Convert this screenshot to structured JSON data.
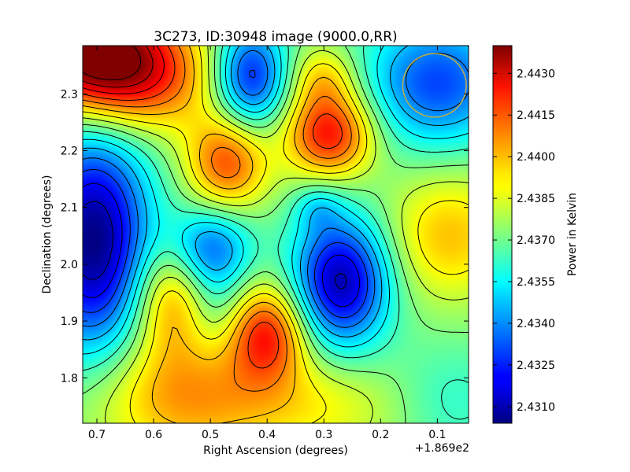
{
  "chart_data": {
    "type": "heatmap",
    "title": "3C273, ID:30948 image (9000.0,RR)",
    "xlabel": "Right Ascension (degrees)",
    "ylabel": "Declination (degrees)",
    "x_offset_label": "+1.869e2",
    "colorbar_label": "Power in Kelvin",
    "colormap": "jet",
    "xlim": [
      0.725,
      0.045
    ],
    "ylim": [
      1.72,
      2.385
    ],
    "color_range": [
      2.4304,
      2.444
    ],
    "x_ticks": [
      {
        "value": 0.7,
        "label": "0.7"
      },
      {
        "value": 0.6,
        "label": "0.6"
      },
      {
        "value": 0.5,
        "label": "0.5"
      },
      {
        "value": 0.4,
        "label": "0.4"
      },
      {
        "value": 0.3,
        "label": "0.3"
      },
      {
        "value": 0.2,
        "label": "0.2"
      },
      {
        "value": 0.1,
        "label": "0.1"
      }
    ],
    "y_ticks": [
      {
        "value": 1.8,
        "label": "1.8"
      },
      {
        "value": 1.9,
        "label": "1.9"
      },
      {
        "value": 2.0,
        "label": "2.0"
      },
      {
        "value": 2.1,
        "label": "2.1"
      },
      {
        "value": 2.2,
        "label": "2.2"
      },
      {
        "value": 2.3,
        "label": "2.3"
      }
    ],
    "colorbar_ticks": [
      {
        "value": 2.431,
        "label": "2.4310"
      },
      {
        "value": 2.4325,
        "label": "2.4325"
      },
      {
        "value": 2.434,
        "label": "2.4340"
      },
      {
        "value": 2.4355,
        "label": "2.4355"
      },
      {
        "value": 2.437,
        "label": "2.4370"
      },
      {
        "value": 2.4385,
        "label": "2.4385"
      },
      {
        "value": 2.44,
        "label": "2.4400"
      },
      {
        "value": 2.4415,
        "label": "2.4415"
      },
      {
        "value": 2.443,
        "label": "2.4430"
      }
    ],
    "field_base": 2.4372,
    "features": [
      {
        "ra": 0.715,
        "dec": 2.38,
        "amp": 0.006,
        "sra": 0.09,
        "sdec": 0.07
      },
      {
        "ra": 0.63,
        "dec": 2.33,
        "amp": 0.004,
        "sra": 0.1,
        "sdec": 0.07
      },
      {
        "ra": 0.705,
        "dec": 2.04,
        "amp": -0.0068,
        "sra": 0.07,
        "sdec": 0.14
      },
      {
        "ra": 0.43,
        "dec": 2.33,
        "amp": -0.005,
        "sra": 0.045,
        "sdec": 0.065
      },
      {
        "ra": 0.29,
        "dec": 2.23,
        "amp": 0.005,
        "sra": 0.055,
        "sdec": 0.055
      },
      {
        "ra": 0.3,
        "dec": 2.33,
        "amp": 0.002,
        "sra": 0.04,
        "sdec": 0.04
      },
      {
        "ra": 0.1,
        "dec": 2.32,
        "amp": -0.0042,
        "sra": 0.09,
        "sdec": 0.08
      },
      {
        "ra": 0.47,
        "dec": 2.18,
        "amp": 0.004,
        "sra": 0.05,
        "sdec": 0.06
      },
      {
        "ra": 0.5,
        "dec": 2.03,
        "amp": -0.0035,
        "sra": 0.05,
        "sdec": 0.05
      },
      {
        "ra": 0.49,
        "dec": 1.93,
        "amp": -0.0015,
        "sra": 0.04,
        "sdec": 0.06
      },
      {
        "ra": 0.27,
        "dec": 1.97,
        "amp": -0.0062,
        "sra": 0.06,
        "sdec": 0.08
      },
      {
        "ra": 0.4,
        "dec": 1.88,
        "amp": 0.0045,
        "sra": 0.05,
        "sdec": 0.06
      },
      {
        "ra": 0.57,
        "dec": 1.94,
        "amp": 0.003,
        "sra": 0.05,
        "sdec": 0.07
      },
      {
        "ra": 0.55,
        "dec": 1.77,
        "amp": 0.003,
        "sra": 0.12,
        "sdec": 0.08
      },
      {
        "ra": 0.3,
        "dec": 1.75,
        "amp": 0.0015,
        "sra": 0.12,
        "sdec": 0.06
      },
      {
        "ra": 0.08,
        "dec": 2.05,
        "amp": 0.0025,
        "sra": 0.08,
        "sdec": 0.08
      },
      {
        "ra": 0.08,
        "dec": 1.76,
        "amp": -0.0012,
        "sra": 0.08,
        "sdec": 0.07
      },
      {
        "ra": 0.31,
        "dec": 2.1,
        "amp": -0.0015,
        "sra": 0.03,
        "sdec": 0.03
      }
    ],
    "beam": {
      "ra": 0.105,
      "dec": 2.315,
      "radius": 0.056,
      "color": "#bdb14a"
    }
  }
}
